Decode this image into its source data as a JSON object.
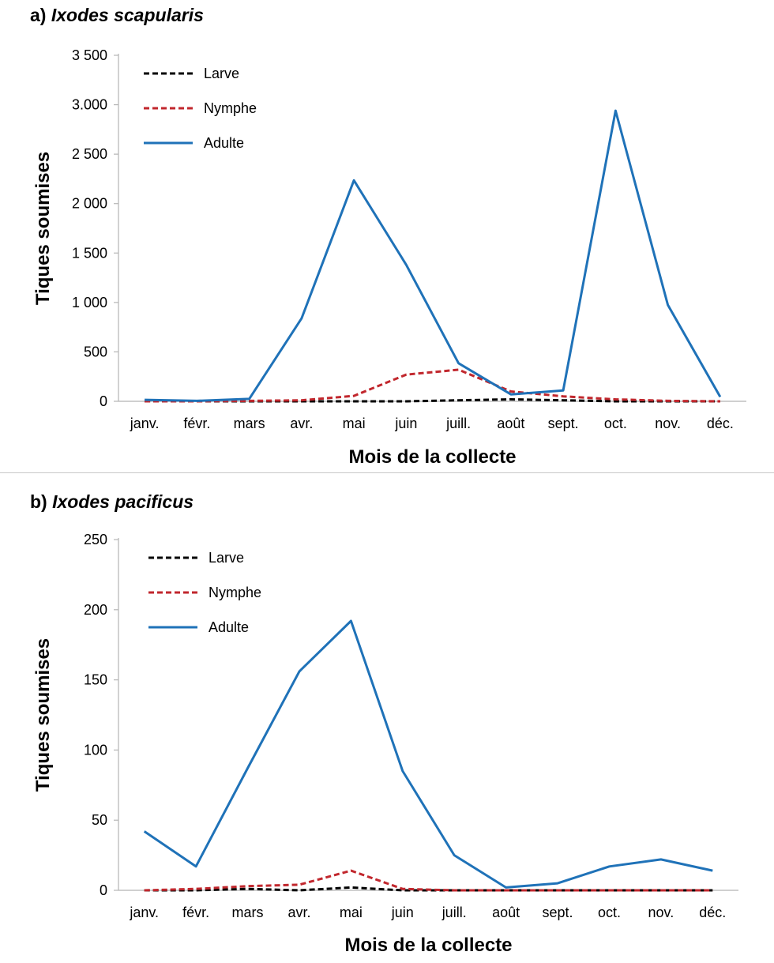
{
  "chart_data": [
    {
      "type": "line",
      "panel": "a)",
      "title": "Ixodes scapularis",
      "xlabel": "Mois de la collecte",
      "ylabel": "Tiques soumises",
      "categories": [
        "janv.",
        "févr.",
        "mars",
        "avr.",
        "mai",
        "juin",
        "juill.",
        "août",
        "sept.",
        "oct.",
        "nov.",
        "déc."
      ],
      "ylim": [
        0,
        3500
      ],
      "yticks": [
        0,
        500,
        1000,
        1500,
        2000,
        2500,
        3000,
        3500
      ],
      "ytick_labels": [
        "0",
        "500",
        "1 000",
        "1 500",
        "2 000",
        "2 500",
        "3.000",
        "3 500"
      ],
      "legend_position": "top-left",
      "series": [
        {
          "name": "Larve",
          "color": "#000000",
          "dash": true,
          "values": [
            0,
            0,
            0,
            0,
            0,
            0,
            10,
            20,
            10,
            0,
            0,
            0
          ]
        },
        {
          "name": "Nymphe",
          "color": "#c1272d",
          "dash": true,
          "values": [
            0,
            0,
            5,
            10,
            55,
            270,
            320,
            100,
            50,
            20,
            5,
            0
          ]
        },
        {
          "name": "Adulte",
          "color": "#1f72b8",
          "dash": false,
          "values": [
            15,
            5,
            25,
            840,
            2235,
            1380,
            385,
            70,
            110,
            2940,
            975,
            45
          ]
        }
      ]
    },
    {
      "type": "line",
      "panel": "b)",
      "title": "Ixodes pacificus",
      "xlabel": "Mois de la collecte",
      "ylabel": "Tiques soumises",
      "categories": [
        "janv.",
        "févr.",
        "mars",
        "avr.",
        "mai",
        "juin",
        "juill.",
        "août",
        "sept.",
        "oct.",
        "nov.",
        "déc."
      ],
      "ylim": [
        0,
        250
      ],
      "yticks": [
        0,
        50,
        100,
        150,
        200,
        250
      ],
      "ytick_labels": [
        "0",
        "50",
        "100",
        "150",
        "200",
        "250"
      ],
      "legend_position": "top-left",
      "series": [
        {
          "name": "Larve",
          "color": "#000000",
          "dash": true,
          "values": [
            0,
            0,
            1,
            0,
            2,
            0,
            0,
            0,
            0,
            0,
            0,
            0
          ]
        },
        {
          "name": "Nymphe",
          "color": "#c1272d",
          "dash": true,
          "values": [
            0,
            1,
            3,
            4,
            14,
            1,
            0,
            0,
            0,
            0,
            0,
            0
          ]
        },
        {
          "name": "Adulte",
          "color": "#1f72b8",
          "dash": false,
          "values": [
            42,
            17,
            87,
            156,
            192,
            85,
            25,
            2,
            5,
            17,
            22,
            14
          ]
        }
      ]
    }
  ]
}
